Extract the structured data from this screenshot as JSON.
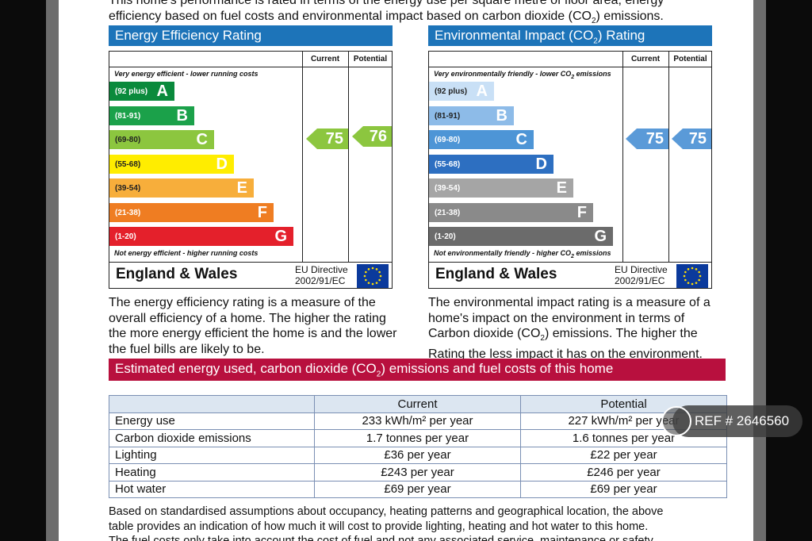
{
  "intro": {
    "line1": "This home's performance is rated in terms of the energy use per square metre of floor area, energy",
    "line2_pre": "efficiency based on fuel costs  and environmental impact based on carbon dioxide (CO",
    "sub": "2",
    "line2_post": ") emissions."
  },
  "energy": {
    "title": "Energy Efficiency Rating",
    "col_current": "Current",
    "col_potential": "Potential",
    "top_note": "Very energy efficient - lower running costs",
    "bottom_note": "Not energy efficient - higher running costs",
    "bands": [
      {
        "range": "(92 plus)",
        "letter": "A",
        "color": "#0a8a3c"
      },
      {
        "range": "(81-91)",
        "letter": "B",
        "color": "#1ba14a"
      },
      {
        "range": "(69-80)",
        "letter": "C",
        "color": "#8cc63f"
      },
      {
        "range": "(55-68)",
        "letter": "D",
        "color": "#ffed00"
      },
      {
        "range": "(39-54)",
        "letter": "E",
        "color": "#f7ae3b"
      },
      {
        "range": "(21-38)",
        "letter": "F",
        "color": "#ef7d22"
      },
      {
        "range": "(1-20)",
        "letter": "G",
        "color": "#e4202b"
      }
    ],
    "current": "75",
    "potential": "76",
    "arrow_color": "#8cc63f",
    "region": "England & Wales",
    "directive_line1": "EU Directive",
    "directive_line2": "2002/91/EC",
    "description": "The energy efficiency rating is a measure of the overall efficiency of a home. The higher the rating the more energy efficient the home is and the lower the fuel bills are likely to be."
  },
  "environment": {
    "title_pre": "Environmental Impact (CO",
    "title_sub": "2",
    "title_post": ") Rating",
    "col_current": "Current",
    "col_potential": "Potential",
    "top_note_pre": "Very environmentally friendly - lower CO",
    "top_note_sub": "2",
    "top_note_post": " emissions",
    "bottom_note_pre": "Not environmentally friendly - higher CO",
    "bottom_note_sub": "2",
    "bottom_note_post": " emissions",
    "bands": [
      {
        "range": "(92 plus)",
        "letter": "A",
        "color": "#c9e0f6"
      },
      {
        "range": "(81-91)",
        "letter": "B",
        "color": "#8dbbe8"
      },
      {
        "range": "(69-80)",
        "letter": "C",
        "color": "#4d95d6"
      },
      {
        "range": "(55-68)",
        "letter": "D",
        "color": "#2d6fc1"
      },
      {
        "range": "(39-54)",
        "letter": "E",
        "color": "#a5a5a5"
      },
      {
        "range": "(21-38)",
        "letter": "F",
        "color": "#8a8a8a"
      },
      {
        "range": "(1-20)",
        "letter": "G",
        "color": "#6b6b6b"
      }
    ],
    "current": "75",
    "potential": "75",
    "arrow_color": "#5a9ad8",
    "region": "England & Wales",
    "directive_line1": "EU Directive",
    "directive_line2": "2002/91/EC",
    "desc_pre": "The environmental impact rating is a measure of a home's impact on the environment in terms of Carbon dioxide (CO",
    "desc_sub": "2",
    "desc_post": ") emissions.  The higher the Rating the less impact it has on the environment."
  },
  "estimate": {
    "title_pre": "Estimated energy used, carbon dioxide (CO",
    "title_sub": "2",
    "title_post": ") emissions and fuel costs of this home",
    "col_current": "Current",
    "col_potential": "Potential",
    "rows": [
      {
        "label": "Energy use",
        "current": "233 kWh/m² per year",
        "potential": "227 kWh/m² per year"
      },
      {
        "label": "Carbon dioxide emissions",
        "current": "1.7 tonnes per year",
        "potential": "1.6 tonnes per year"
      },
      {
        "label": "Lighting",
        "current": "£36 per year",
        "potential": "£22 per year"
      },
      {
        "label": "Heating",
        "current": "£243 per year",
        "potential": "£246 per year"
      },
      {
        "label": "Hot water",
        "current": "£69 per year",
        "potential": "£69 per year"
      }
    ]
  },
  "footer": {
    "line1": "Based on standardised assumptions about occupancy,  heating patterns and geographical location,  the above",
    "line2": "table provides an indication of how much it will cost to provide lighting, heating and hot water to this home.",
    "line3": "The fuel costs  only take into account the cost  of fuel and not any associated  service,  maintenance or safety"
  },
  "watermark": {
    "text": "REF # 2646560"
  },
  "colors": {
    "header_blue": "#1d74b9",
    "header_red": "#b8103e",
    "eu_flag": "#0b3a9c",
    "eu_star": "#ffdd00"
  }
}
